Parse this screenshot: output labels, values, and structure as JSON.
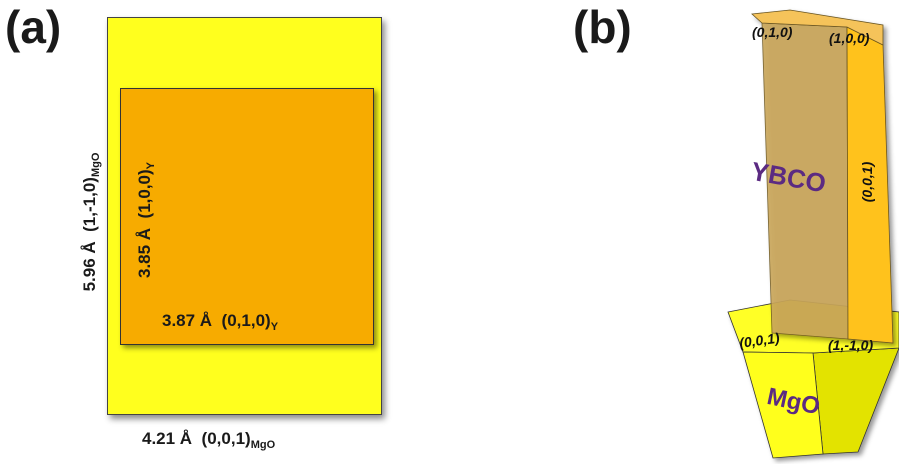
{
  "panel_a": {
    "label": "(a)",
    "width_label": {
      "value": "4.21 Å",
      "index": "(0,0,1)",
      "subscript": "MgO"
    },
    "height_label": {
      "value": "5.96 Å",
      "index": "(1,-1,0)",
      "subscript": "MgO"
    },
    "inner_width_label": {
      "value": "3.87 Å",
      "index": "(0,1,0)",
      "subscript": "Y"
    },
    "inner_height_label": {
      "value": "3.85 Å",
      "index": "(1,0,0)",
      "subscript": "Y"
    }
  },
  "panel_b": {
    "label": "(b)",
    "ybco": {
      "name": "YBCO",
      "top_face_left": "(0,1,0)",
      "top_face_right": "(1,0,0)",
      "side_face": "(0,0,1)"
    },
    "mgo": {
      "name": "MgO",
      "top_face_left": "(0,0,1)",
      "top_face_right": "(1,-1,0)"
    }
  },
  "colors": {
    "mgo_yellow": "#ffff1e",
    "ybco_orange": "#f7ab00",
    "ybco_light": "#ffc21a",
    "ybco_dark": "#c9a65a",
    "text_purple": "#5b2a82"
  }
}
